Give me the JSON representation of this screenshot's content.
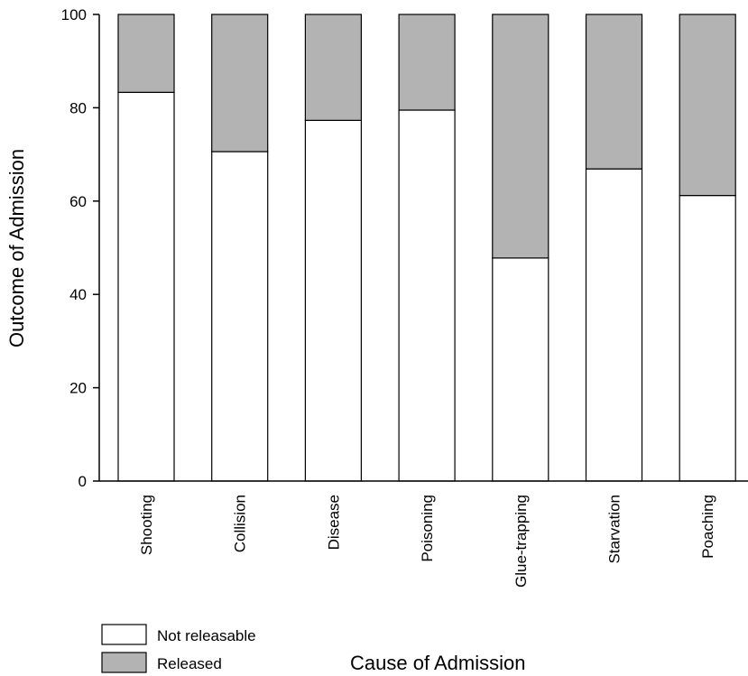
{
  "chart_data": {
    "type": "bar",
    "stacked": true,
    "categories": [
      "Shooting",
      "Collision",
      "Disease",
      "Poisoning",
      "Glue-trapping",
      "Starvation",
      "Poaching"
    ],
    "series": [
      {
        "name": "Not releasable",
        "color": "#ffffff",
        "values": [
          83.3,
          70.6,
          77.3,
          79.5,
          47.8,
          66.9,
          61.2
        ]
      },
      {
        "name": "Released",
        "color": "#b3b3b3",
        "values": [
          16.7,
          29.4,
          22.7,
          20.5,
          52.2,
          33.1,
          38.8
        ]
      }
    ],
    "xlabel": "Cause of Admission",
    "ylabel": "Outcome of Admission",
    "ylim": [
      0,
      100
    ],
    "yticks": [
      "0",
      "20",
      "40",
      "60",
      "80",
      "100"
    ],
    "grid": false,
    "legend_position": "bottom-left"
  }
}
